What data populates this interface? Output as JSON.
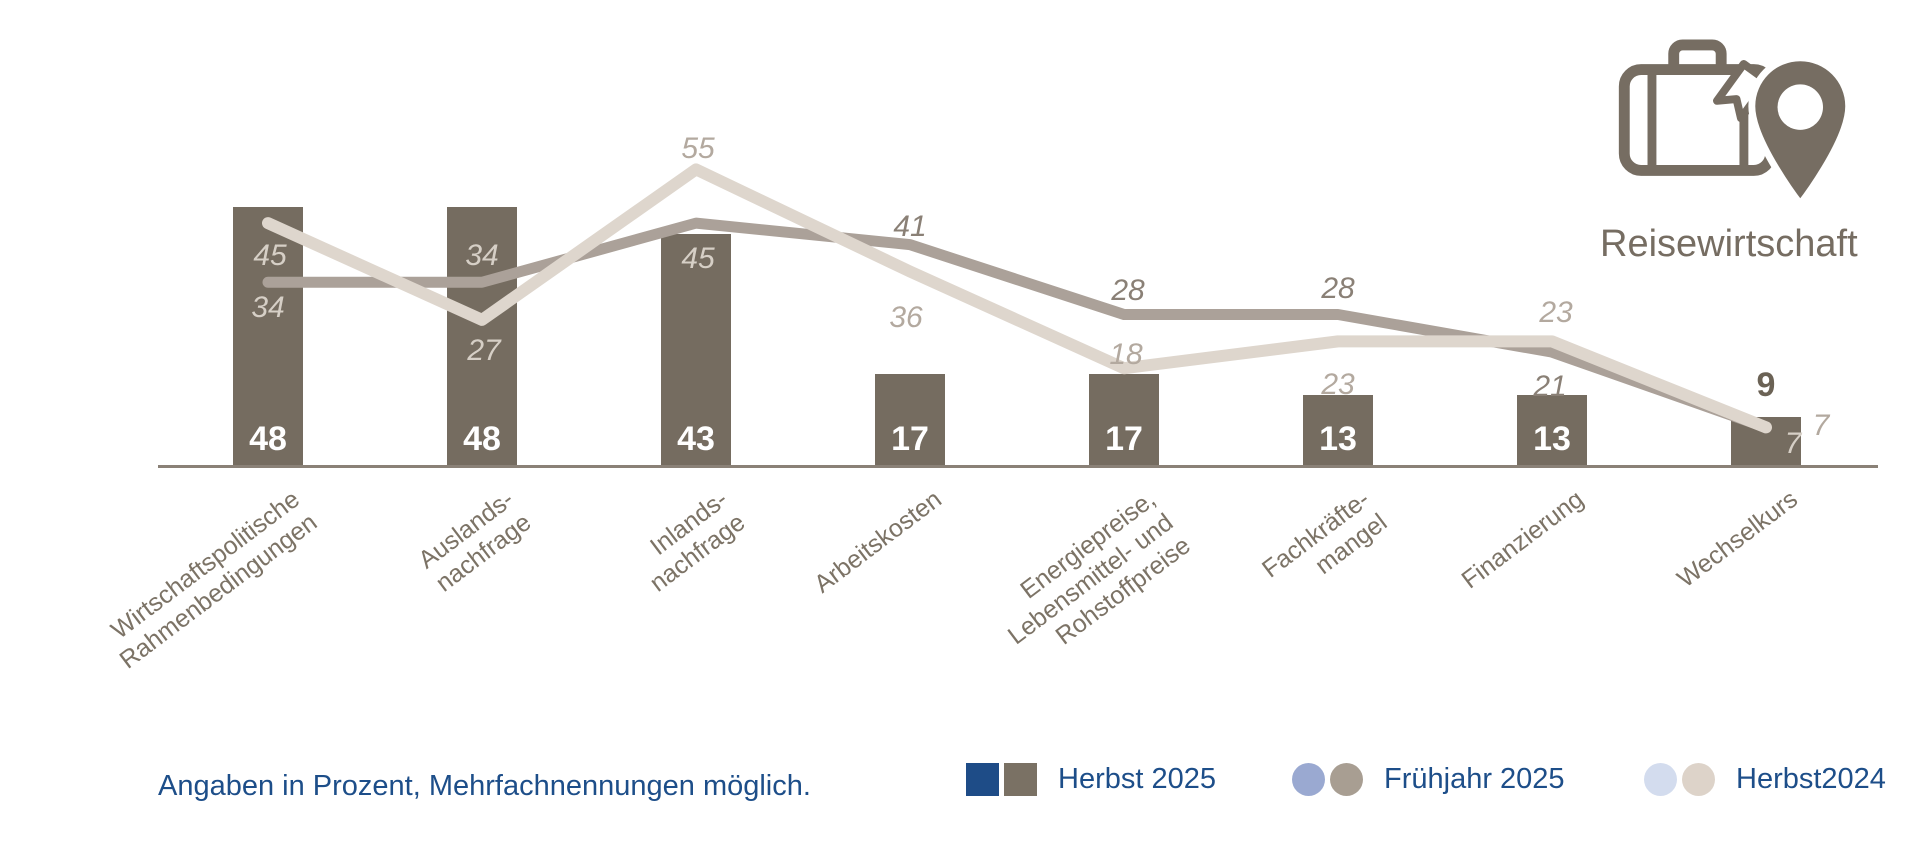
{
  "title": "Reisewirtschaft",
  "footnote": "Angaben in Prozent, Mehrfachnennungen möglich.",
  "icon": "suitcase-location-pin-icon",
  "colors": {
    "bar": "#756c60",
    "line_fruehjahr": "#aba199",
    "line_herbst2024": "#ded6cd",
    "axis": "#8a8177",
    "category_text": "#7c7366",
    "legend_text": "#1d4e89",
    "bar_value_text": "#ffffff",
    "icon_color": "#766d62"
  },
  "legend": [
    {
      "label": "Herbst 2025",
      "marker": "square",
      "colors": [
        "#1e4c87",
        "#7a7164"
      ]
    },
    {
      "label": "Frühjahr 2025",
      "marker": "circle",
      "colors": [
        "#9aa9d1",
        "#a89e92"
      ]
    },
    {
      "label": "Herbst2024",
      "marker": "circle",
      "colors": [
        "#d3dcee",
        "#ddd3c9"
      ]
    }
  ],
  "chart_data": {
    "type": "bar",
    "title": "Reisewirtschaft",
    "note": "Angaben in Prozent, Mehrfachnennungen möglich.",
    "ylim": [
      0,
      60
    ],
    "grid": false,
    "legend_position": "bottom",
    "categories": [
      [
        "Wirtschaftspolitische",
        "Rahmenbedingungen"
      ],
      [
        "Auslands-",
        "nachfrage"
      ],
      [
        "Inlands-",
        "nachfrage"
      ],
      [
        "Arbeitskosten"
      ],
      [
        "Energiepreise,",
        "Lebensmittel- und",
        "Rohstoffpreise"
      ],
      [
        "Fachkräfte-",
        "mangel"
      ],
      [
        "Finanzierung"
      ],
      [
        "Wechselkurs"
      ]
    ],
    "series": [
      {
        "name": "Herbst 2025",
        "type": "bar",
        "values": [
          48,
          48,
          43,
          17,
          17,
          13,
          13,
          9
        ]
      },
      {
        "name": "Frühjahr 2025",
        "type": "line",
        "values": [
          34,
          34,
          45,
          41,
          28,
          28,
          21,
          7
        ]
      },
      {
        "name": "Herbst2024",
        "type": "line",
        "values": [
          45,
          27,
          55,
          36,
          18,
          23,
          23,
          7
        ]
      }
    ]
  }
}
